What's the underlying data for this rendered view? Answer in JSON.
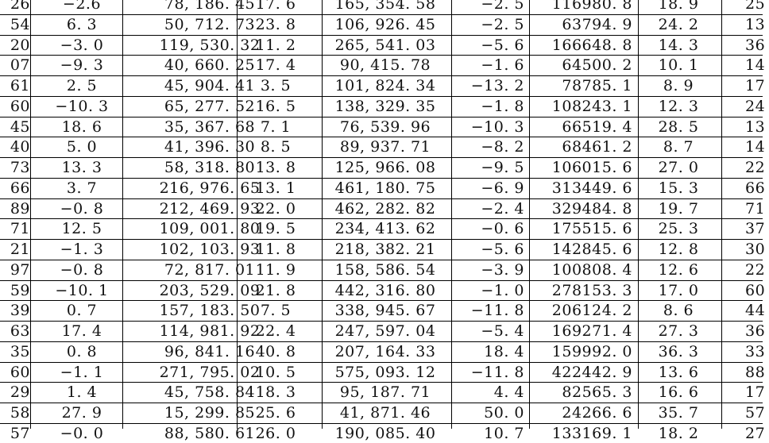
{
  "table": {
    "rows": [
      [
        "26",
        "−2.6",
        "78, 186. 45",
        "17. 6",
        "165, 354. 58",
        "−2. 5",
        "116980. 8",
        "18. 9",
        "25"
      ],
      [
        "54",
        "6. 3",
        "50, 712. 73",
        "23. 8",
        "106, 926. 45",
        "−2. 5",
        "63794. 9",
        "24. 2",
        "13"
      ],
      [
        "20",
        "−3. 0",
        "119, 530. 32",
        "11. 2",
        "265, 541. 03",
        "−5. 6",
        "166648. 8",
        "14. 3",
        "36"
      ],
      [
        "07",
        "−9. 3",
        "40, 660. 25",
        "17. 4",
        "90, 415. 78",
        "−1. 6",
        "64500. 2",
        "10. 1",
        "14"
      ],
      [
        "61",
        "2. 5",
        "45, 904. 41",
        "3. 5",
        "101, 824. 34",
        "−13. 2",
        "78785. 1",
        "8. 9",
        "17"
      ],
      [
        "60",
        "−10. 3",
        "65, 277. 52",
        "16. 5",
        "138, 329. 35",
        "−1. 8",
        "108243. 1",
        "12. 3",
        "24"
      ],
      [
        "45",
        "18. 6",
        "35, 367. 68",
        "7. 1",
        "76, 539. 96",
        "−10. 3",
        "66519. 4",
        "28. 5",
        "13"
      ],
      [
        "40",
        "5. 0",
        "41, 396. 30",
        "8. 5",
        "89, 937. 71",
        "−8. 2",
        "68461. 2",
        "8. 7",
        "14"
      ],
      [
        "73",
        "13. 3",
        "58, 318. 80",
        "13. 8",
        "125, 966. 08",
        "−9. 5",
        "106015. 6",
        "27. 0",
        "22"
      ],
      [
        "66",
        "3. 7",
        "216, 976. 65",
        "13. 1",
        "461, 180. 75",
        "−6. 9",
        "313449. 6",
        "15. 3",
        "66"
      ],
      [
        "89",
        "−0. 8",
        "212, 469. 93",
        "22. 0",
        "462, 282. 82",
        "−2. 4",
        "329484. 8",
        "19. 7",
        "71"
      ],
      [
        "71",
        "12. 5",
        "109, 001. 80",
        "19. 5",
        "234, 413. 62",
        "−0. 6",
        "175515. 6",
        "25. 3",
        "37"
      ],
      [
        "21",
        "−1. 3",
        "102, 103. 93",
        "11. 8",
        "218, 382. 21",
        "−5. 6",
        "142845. 6",
        "12. 8",
        "30"
      ],
      [
        "97",
        "−0. 8",
        "72, 817. 01",
        "11. 9",
        "158, 586. 54",
        "−3. 9",
        "100808. 4",
        "12. 6",
        "22"
      ],
      [
        "59",
        "−10. 1",
        "203, 529. 09",
        "21. 8",
        "442, 316. 80",
        "−1. 0",
        "278153. 3",
        "17. 0",
        "60"
      ],
      [
        "39",
        "0. 7",
        "157, 183. 50",
        "7. 5",
        "338, 945. 67",
        "−11. 8",
        "206124. 2",
        "8. 6",
        "44"
      ],
      [
        "63",
        "17. 4",
        "114, 981. 92",
        "22. 4",
        "247, 597. 04",
        "−5. 4",
        "169271. 4",
        "27. 3",
        "36"
      ],
      [
        "35",
        "0. 8",
        "96, 841. 16",
        "40. 8",
        "207, 164. 33",
        "18. 4",
        "159992. 0",
        "36. 3",
        "33"
      ],
      [
        "60",
        "−1. 1",
        "271, 795. 02",
        "10. 5",
        "575, 093. 12",
        "−11. 8",
        "422442. 9",
        "13. 6",
        "88"
      ],
      [
        "29",
        "1. 4",
        "45, 758. 84",
        "18. 3",
        "95, 187. 71",
        "4. 4",
        "82565. 3",
        "16. 6",
        "17"
      ],
      [
        "58",
        "27. 9",
        "15, 299. 85",
        "25. 6",
        "41, 871. 46",
        "50. 0",
        "24266. 6",
        "35. 7",
        "57"
      ],
      [
        "57",
        "−0. 0",
        "88, 580. 61",
        "26. 0",
        "190, 085. 40",
        "10. 7",
        "133169. 1",
        "18. 2",
        "27"
      ]
    ]
  }
}
